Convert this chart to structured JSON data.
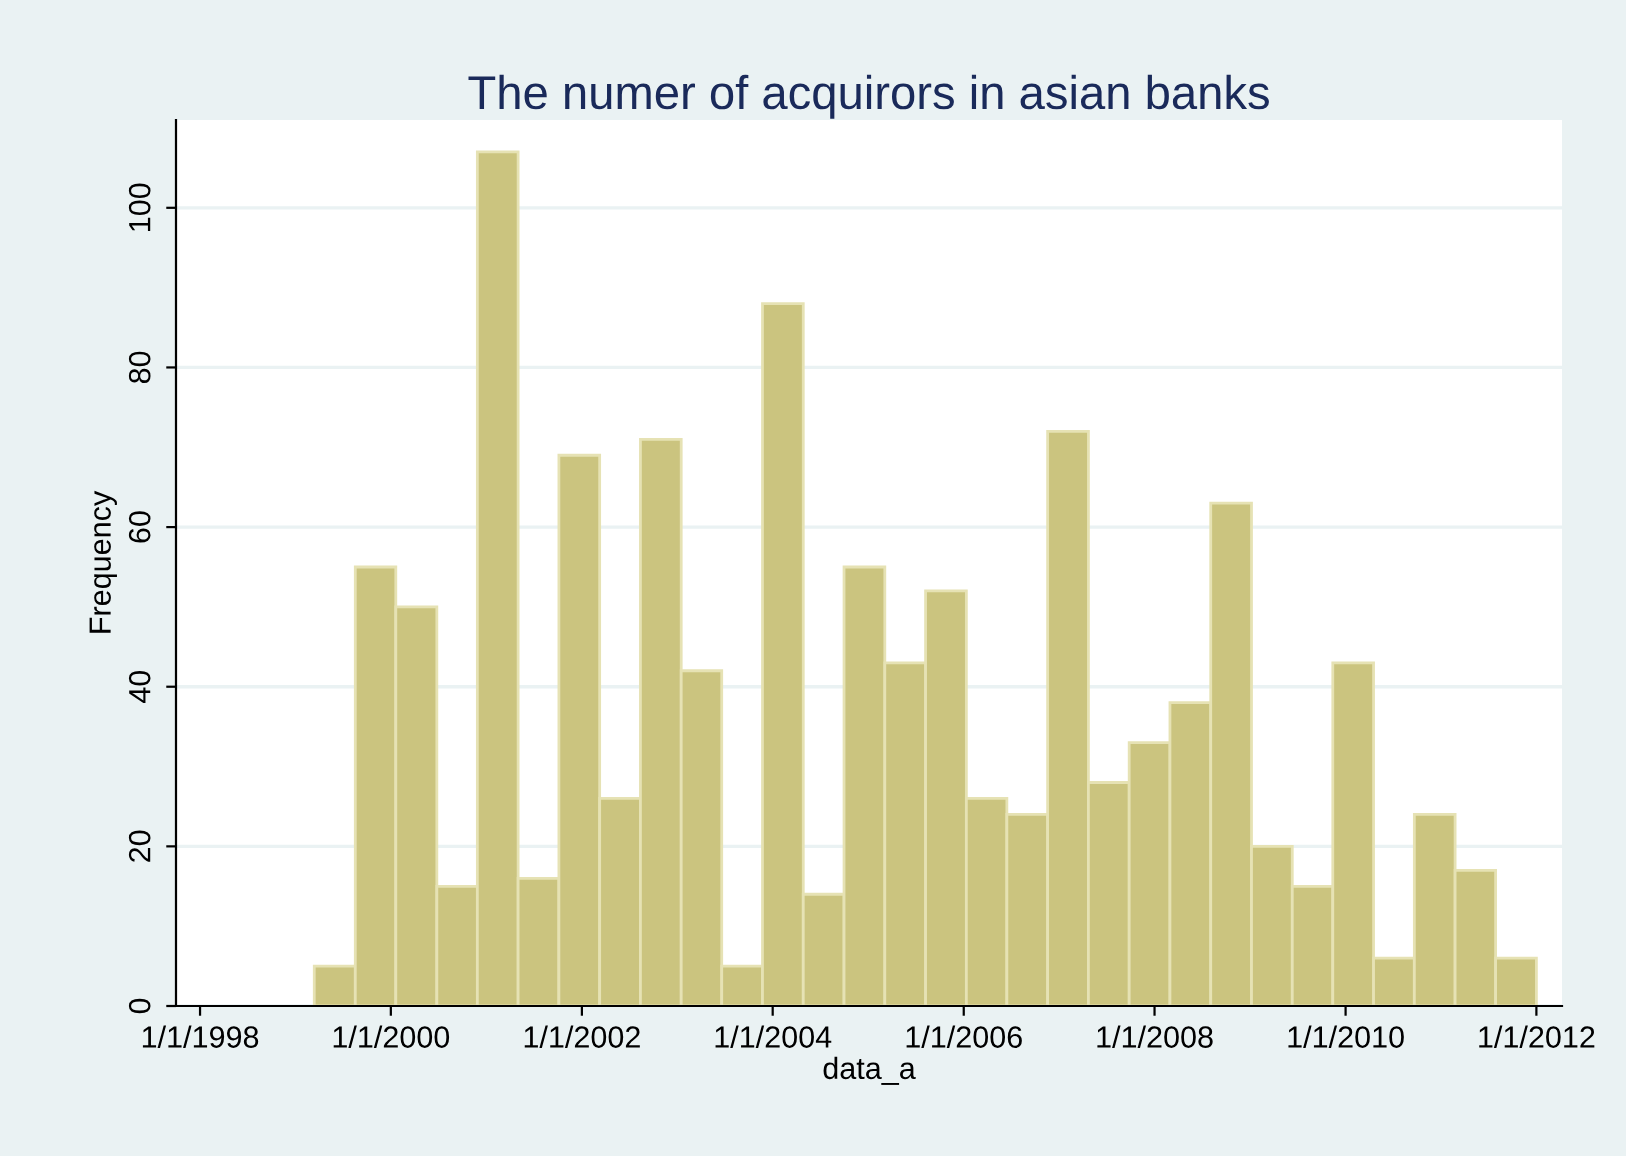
{
  "chart_data": {
    "type": "histogram",
    "title": "The numer of acquirors in asian banks",
    "xlabel": "data_a",
    "ylabel": "Frequency",
    "bins": [
      "1999-03-14",
      "1999-08-18",
      "2000-01-20",
      "2000-06-25",
      "2000-11-27",
      "2001-05-02",
      "2001-10-05",
      "2002-03-10",
      "2002-08-13",
      "2003-01-16",
      "2003-06-20",
      "2003-11-23",
      "2004-04-27",
      "2004-09-30",
      "2005-03-05",
      "2005-08-08",
      "2006-01-11",
      "2006-06-15",
      "2006-11-18",
      "2007-04-23",
      "2007-09-26",
      "2008-02-29",
      "2008-08-03",
      "2009-01-06",
      "2009-06-11",
      "2009-11-13",
      "2010-04-18",
      "2010-09-21",
      "2011-02-24",
      "2011-07-29",
      "2012-01-01"
    ],
    "values": [
      5,
      55,
      50,
      15,
      107,
      16,
      69,
      26,
      71,
      42,
      5,
      88,
      14,
      55,
      43,
      52,
      26,
      24,
      72,
      28,
      33,
      38,
      63,
      20,
      15,
      43,
      6,
      24,
      17,
      6
    ],
    "color": "#cbc47f",
    "xlim": [
      "1997-10-01",
      "2012-04-08"
    ],
    "ylim": [
      0,
      111
    ],
    "xticks": [
      {
        "value": "1998-01-01",
        "label": "1/1/1998"
      },
      {
        "value": "2000-01-01",
        "label": "1/1/2000"
      },
      {
        "value": "2002-01-01",
        "label": "1/1/2002"
      },
      {
        "value": "2004-01-01",
        "label": "1/1/2004"
      },
      {
        "value": "2006-01-01",
        "label": "1/1/2006"
      },
      {
        "value": "2008-01-01",
        "label": "1/1/2008"
      },
      {
        "value": "2010-01-01",
        "label": "1/1/2010"
      },
      {
        "value": "2012-01-01",
        "label": "1/1/2012"
      }
    ],
    "yticks": [
      0,
      20,
      40,
      60,
      80,
      100
    ],
    "grid": "y"
  }
}
